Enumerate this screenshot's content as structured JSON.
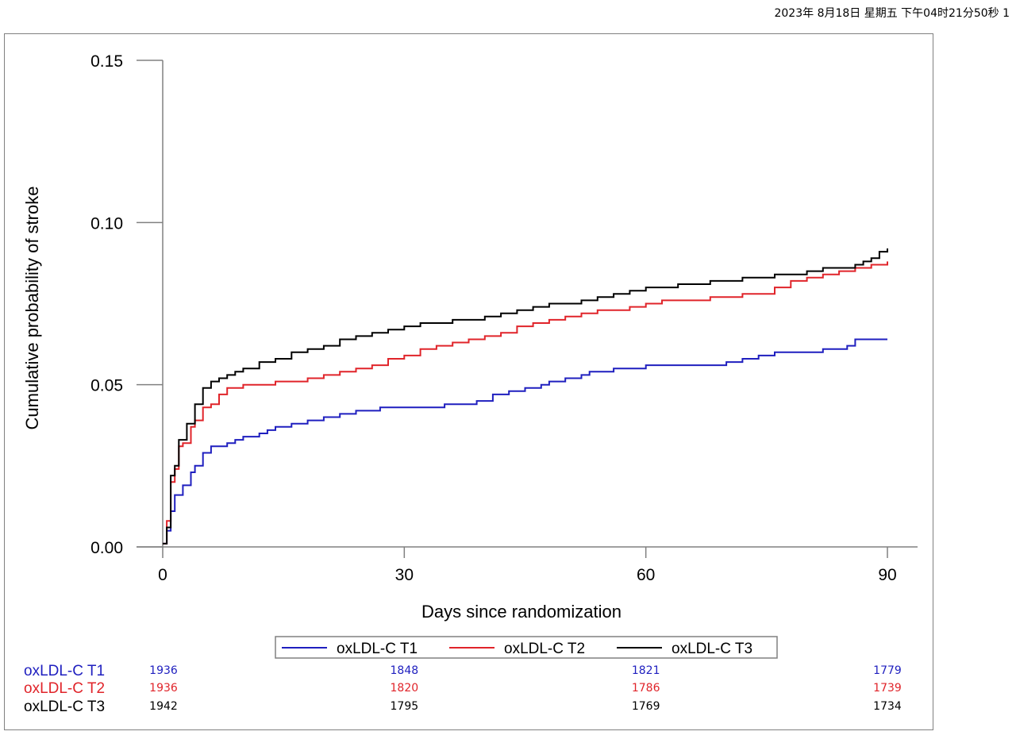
{
  "header": {
    "stamp": "2023年 8月18日 星期五 下午04时21分50秒   1"
  },
  "colors": {
    "t1": "#1f1fbf",
    "t2": "#e0242a",
    "t3": "#000000",
    "axis": "#808080"
  },
  "chart_data": {
    "type": "line",
    "title": "",
    "xlabel": "Days since randomization",
    "ylabel": "Cumulative probability of  stroke",
    "xlim": [
      0,
      90
    ],
    "ylim": [
      0,
      0.15
    ],
    "x_ticks": [
      0,
      30,
      60,
      90
    ],
    "x_tick_labels": [
      "0",
      "30",
      "60",
      "90"
    ],
    "y_ticks": [
      0,
      0.05,
      0.1,
      0.15
    ],
    "y_tick_labels": [
      "0.00",
      "0.05",
      "0.10",
      "0.15"
    ],
    "grid": false,
    "legend_position": "bottom",
    "series": [
      {
        "name": "oxLDL-C T1",
        "color": "#1f1fbf",
        "step": true,
        "x": [
          0,
          0.5,
          1,
          1.5,
          2,
          2.5,
          3,
          3.5,
          4,
          5,
          6,
          8,
          9,
          10,
          11,
          12,
          13,
          14,
          16,
          18,
          20,
          22,
          24,
          26,
          27,
          30,
          33,
          35,
          37,
          39,
          41,
          43,
          45,
          47,
          48,
          50,
          52,
          53,
          56,
          60,
          64,
          70,
          72,
          74,
          76,
          80,
          82,
          84,
          85,
          86,
          88,
          90
        ],
        "y": [
          0.001,
          0.005,
          0.011,
          0.016,
          0.016,
          0.019,
          0.019,
          0.023,
          0.025,
          0.029,
          0.031,
          0.032,
          0.033,
          0.034,
          0.034,
          0.035,
          0.036,
          0.037,
          0.038,
          0.039,
          0.04,
          0.041,
          0.042,
          0.042,
          0.043,
          0.043,
          0.043,
          0.044,
          0.044,
          0.045,
          0.047,
          0.048,
          0.049,
          0.05,
          0.051,
          0.052,
          0.053,
          0.054,
          0.055,
          0.056,
          0.056,
          0.057,
          0.058,
          0.059,
          0.06,
          0.06,
          0.061,
          0.061,
          0.062,
          0.064,
          0.064,
          0.064
        ]
      },
      {
        "name": "oxLDL-C T2",
        "color": "#e0242a",
        "step": true,
        "x": [
          0,
          0.5,
          1,
          1.5,
          2,
          2.5,
          3,
          3.5,
          4,
          5,
          6,
          7,
          8,
          10,
          12,
          14,
          16,
          18,
          20,
          22,
          24,
          26,
          28,
          30,
          32,
          34,
          36,
          38,
          40,
          42,
          44,
          46,
          48,
          50,
          52,
          54,
          56,
          58,
          60,
          62,
          64,
          68,
          70,
          72,
          74,
          76,
          78,
          80,
          82,
          84,
          86,
          88,
          90
        ],
        "y": [
          0.001,
          0.008,
          0.02,
          0.024,
          0.031,
          0.032,
          0.032,
          0.037,
          0.039,
          0.043,
          0.044,
          0.047,
          0.049,
          0.05,
          0.05,
          0.051,
          0.051,
          0.052,
          0.053,
          0.054,
          0.055,
          0.056,
          0.058,
          0.059,
          0.061,
          0.062,
          0.063,
          0.064,
          0.065,
          0.066,
          0.068,
          0.069,
          0.07,
          0.071,
          0.072,
          0.073,
          0.073,
          0.074,
          0.075,
          0.076,
          0.076,
          0.077,
          0.077,
          0.078,
          0.078,
          0.08,
          0.082,
          0.083,
          0.084,
          0.085,
          0.086,
          0.087,
          0.088
        ]
      },
      {
        "name": "oxLDL-C T3",
        "color": "#000000",
        "step": true,
        "x": [
          0,
          0.5,
          1,
          1.5,
          2,
          2.5,
          3,
          3.5,
          4,
          5,
          6,
          7,
          8,
          9,
          10,
          12,
          14,
          16,
          18,
          20,
          22,
          24,
          26,
          28,
          30,
          32,
          34,
          36,
          38,
          40,
          42,
          44,
          46,
          48,
          50,
          52,
          54,
          56,
          58,
          60,
          62,
          64,
          66,
          68,
          70,
          72,
          74,
          76,
          78,
          80,
          82,
          84,
          86,
          87,
          88,
          89,
          90
        ],
        "y": [
          0.001,
          0.006,
          0.022,
          0.025,
          0.033,
          0.033,
          0.038,
          0.038,
          0.044,
          0.049,
          0.051,
          0.052,
          0.053,
          0.054,
          0.055,
          0.057,
          0.058,
          0.06,
          0.061,
          0.062,
          0.064,
          0.065,
          0.066,
          0.067,
          0.068,
          0.069,
          0.069,
          0.07,
          0.07,
          0.071,
          0.072,
          0.073,
          0.074,
          0.075,
          0.075,
          0.076,
          0.077,
          0.078,
          0.079,
          0.08,
          0.08,
          0.081,
          0.081,
          0.082,
          0.082,
          0.083,
          0.083,
          0.084,
          0.084,
          0.085,
          0.086,
          0.086,
          0.087,
          0.088,
          0.089,
          0.091,
          0.092
        ]
      }
    ],
    "risk_table": {
      "time_points": [
        0,
        30,
        60,
        90
      ],
      "rows": [
        {
          "label": "oxLDL-C T1",
          "values": [
            "1936",
            "1848",
            "1821",
            "1779"
          ]
        },
        {
          "label": "oxLDL-C T2",
          "values": [
            "1936",
            "1820",
            "1786",
            "1739"
          ]
        },
        {
          "label": "oxLDL-C T3",
          "values": [
            "1942",
            "1795",
            "1769",
            "1734"
          ]
        }
      ]
    }
  }
}
